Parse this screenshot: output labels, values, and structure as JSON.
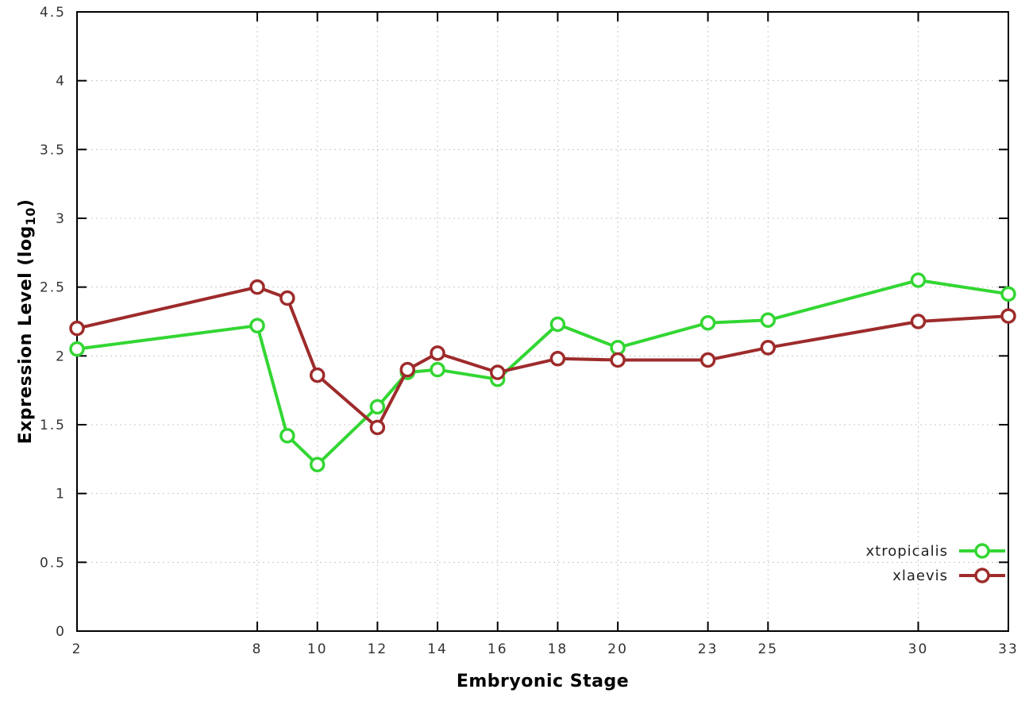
{
  "chart_data": {
    "type": "line",
    "title": "",
    "xlabel": "Embryonic Stage",
    "ylabel_main": "Expression Level (log",
    "ylabel_sub": "10",
    "ylabel_close": ")",
    "xlim": [
      2,
      33
    ],
    "ylim": [
      0,
      4.5
    ],
    "grid": true,
    "legend_position": "inside-bottom-right",
    "x_tick_values": [
      2,
      8,
      10,
      12,
      14,
      16,
      18,
      20,
      23,
      25,
      30,
      33
    ],
    "x_tick_labels": [
      "2",
      "8",
      "10",
      "12",
      "14",
      "16",
      "18",
      "20",
      "23",
      "25",
      "30",
      "33"
    ],
    "y_tick_values": [
      0,
      0.5,
      1,
      1.5,
      2,
      2.5,
      3,
      3.5,
      4,
      4.5
    ],
    "y_tick_labels": [
      "0",
      "0.5",
      "1",
      "1.5",
      "2",
      "2.5",
      "3",
      "3.5",
      "4",
      "4.5"
    ],
    "x": [
      2,
      8,
      9,
      10,
      12,
      13,
      14,
      16,
      18,
      20,
      23,
      25,
      30,
      33
    ],
    "series": [
      {
        "name": "xtropicalis",
        "color": "#33d633",
        "values": [
          2.05,
          2.22,
          1.42,
          1.21,
          1.63,
          1.88,
          1.9,
          1.83,
          2.23,
          2.06,
          2.24,
          2.26,
          2.55,
          2.45
        ]
      },
      {
        "name": "xlaevis",
        "color": "#9e2b2b",
        "values": [
          2.2,
          2.5,
          2.42,
          1.86,
          1.48,
          1.9,
          2.02,
          1.88,
          1.98,
          1.97,
          1.97,
          2.06,
          2.25,
          2.29
        ]
      }
    ],
    "colors": {
      "grid": "#c8c8c8",
      "border": "#000000",
      "tick_text": "#333333",
      "background": "#ffffff",
      "marker_fill": "#ffffff"
    }
  }
}
